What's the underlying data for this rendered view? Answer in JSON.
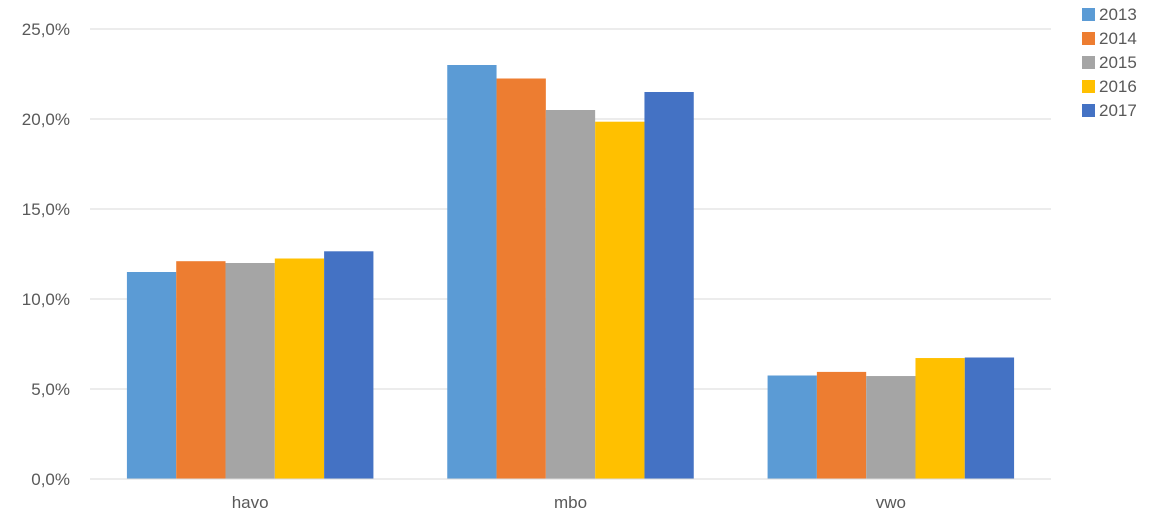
{
  "chart_data": {
    "type": "bar",
    "categories": [
      "havo",
      "mbo",
      "vwo"
    ],
    "series": [
      {
        "name": "2013",
        "color": "#5B9BD5",
        "values": [
          11.5,
          23.0,
          5.75
        ]
      },
      {
        "name": "2014",
        "color": "#ED7D31",
        "values": [
          12.1,
          22.25,
          5.95
        ]
      },
      {
        "name": "2015",
        "color": "#A5A5A5",
        "values": [
          12.0,
          20.5,
          5.72
        ]
      },
      {
        "name": "2016",
        "color": "#FFC000",
        "values": [
          12.25,
          19.85,
          6.72
        ]
      },
      {
        "name": "2017",
        "color": "#4472C4",
        "values": [
          12.65,
          21.5,
          6.75
        ]
      }
    ],
    "yticks": [
      "0,0%",
      "5,0%",
      "10,0%",
      "15,0%",
      "20,0%",
      "25,0%"
    ],
    "ylim": [
      0,
      25
    ],
    "grid": true,
    "legend_position": "top-right",
    "title": "",
    "xlabel": "",
    "ylabel": ""
  }
}
